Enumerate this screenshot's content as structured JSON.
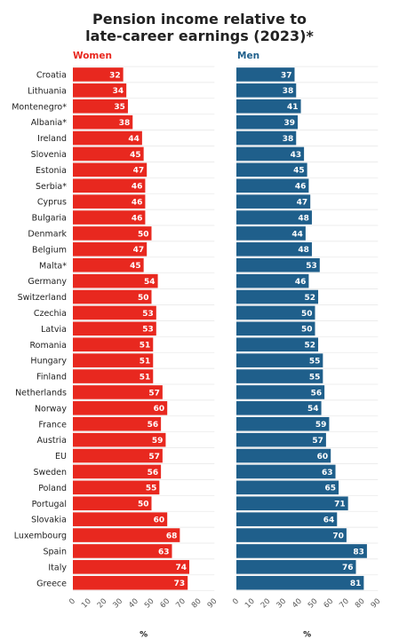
{
  "title_lines": [
    "Pension income relative to",
    "late-career earnings (2023)*"
  ],
  "colors": {
    "women": "#e8281f",
    "men": "#1f5f8b",
    "grid": "#e6e6e6"
  },
  "chart_data": [
    {
      "type": "bar",
      "orientation": "horizontal",
      "title": "Women",
      "xlabel": "%",
      "xlim": [
        0,
        90
      ],
      "xticks": [
        0,
        10,
        20,
        30,
        40,
        50,
        60,
        70,
        80,
        90
      ],
      "categories": [
        "Croatia",
        "Lithuania",
        "Montenegro*",
        "Albania*",
        "Ireland",
        "Slovenia",
        "Estonia",
        "Serbia*",
        "Cyprus",
        "Bulgaria",
        "Denmark",
        "Belgium",
        "Malta*",
        "Germany",
        "Switzerland",
        "Czechia",
        "Latvia",
        "Romania",
        "Hungary",
        "Finland",
        "Netherlands",
        "Norway",
        "France",
        "Austria",
        "EU",
        "Sweden",
        "Poland",
        "Portugal",
        "Slovakia",
        "Luxembourg",
        "Spain",
        "Italy",
        "Greece"
      ],
      "values": [
        32,
        34,
        35,
        38,
        44,
        45,
        47,
        46,
        46,
        46,
        50,
        47,
        45,
        54,
        50,
        53,
        53,
        51,
        51,
        51,
        57,
        60,
        56,
        59,
        57,
        56,
        55,
        50,
        60,
        68,
        63,
        74,
        73
      ]
    },
    {
      "type": "bar",
      "orientation": "horizontal",
      "title": "Men",
      "xlabel": "%",
      "xlim": [
        0,
        90
      ],
      "xticks": [
        0,
        10,
        20,
        30,
        40,
        50,
        60,
        70,
        80,
        90
      ],
      "categories": [
        "Croatia",
        "Lithuania",
        "Montenegro*",
        "Albania*",
        "Ireland",
        "Slovenia",
        "Estonia",
        "Serbia*",
        "Cyprus",
        "Bulgaria",
        "Denmark",
        "Belgium",
        "Malta*",
        "Germany",
        "Switzerland",
        "Czechia",
        "Latvia",
        "Romania",
        "Hungary",
        "Finland",
        "Netherlands",
        "Norway",
        "France",
        "Austria",
        "EU",
        "Sweden",
        "Poland",
        "Portugal",
        "Slovakia",
        "Luxembourg",
        "Spain",
        "Italy",
        "Greece"
      ],
      "values": [
        37,
        38,
        41,
        39,
        38,
        43,
        45,
        46,
        47,
        48,
        44,
        48,
        53,
        46,
        52,
        50,
        50,
        52,
        55,
        55,
        56,
        54,
        59,
        57,
        60,
        63,
        65,
        71,
        64,
        70,
        83,
        76,
        81
      ]
    }
  ]
}
